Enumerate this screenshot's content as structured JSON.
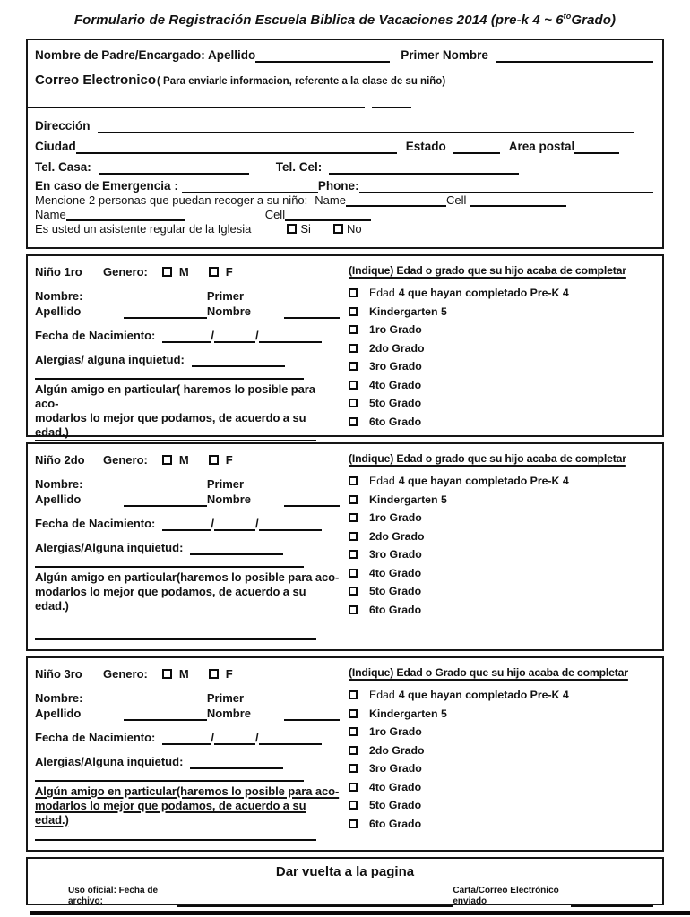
{
  "title": {
    "main": "Formulario de Registración Escuela Biblica de Vacaciones 2014 (pre-k 4 ~ 6",
    "sup": "to",
    "tail": "Grado)"
  },
  "parent": {
    "nombre_label": "Nombre de Padre/Encargado: Apellido",
    "primer_nombre_label": "Primer Nombre",
    "correo_label": "Correo Electronico",
    "correo_paren": "( Para enviarle informacion, referente a la clase de su niño)",
    "direccion_label": "Dirección",
    "ciudad_label": "Ciudad",
    "estado_label": "Estado",
    "area_postal_label": "Area postal",
    "tel_casa_label": "Tel. Casa:",
    "tel_cel_label": "Tel. Cel:",
    "emergencia_label": "En caso de Emergencia  :",
    "phone_label": "Phone:",
    "mencione_text": "Mencione 2 personas que puedan recoger a su niño:",
    "name_label": "Name",
    "cell_label": "Cell",
    "name2_label": "Name",
    "cell2_label": "Cell",
    "asistente_question": "Es usted un asistente regular de la Iglesia",
    "si_label": "Si",
    "no_label": "No"
  },
  "children": [
    {
      "heading": "Niño 1ro",
      "genero_label": "Genero:",
      "male_label": "M",
      "female_label": "F",
      "nombre_label": "Nombre: Apellido",
      "primer_label": "Primer Nombre",
      "fecha_label": "Fecha de Nacimiento:",
      "fecha_sep": "/",
      "alergias_label": "Alergias/ alguna inquietud:",
      "friend_line1": "Algún amigo en particular( haremos lo posible para aco-",
      "friend_line2": "modarlos lo mejor que podamos, de acuerdo a su edad.)",
      "grades_header": "(Indique) Edad o grado que su hijo acaba de completar",
      "grade_items": [
        {
          "prefix": "Edad",
          "label": "4 que hayan completado Pre-K 4"
        },
        {
          "prefix": "",
          "label": "Kindergarten 5"
        },
        {
          "prefix": "",
          "label": "1ro Grado"
        },
        {
          "prefix": "",
          "label": "2do Grado"
        },
        {
          "prefix": "",
          "label": "3ro Grado"
        },
        {
          "prefix": "",
          "label": "4to Grado"
        },
        {
          "prefix": "",
          "label": "5to Grado"
        },
        {
          "prefix": "",
          "label": "6to Grado"
        }
      ]
    },
    {
      "heading": "Niño 2do",
      "genero_label": "Genero:",
      "male_label": "M",
      "female_label": "F",
      "nombre_label": "Nombre: Apellido",
      "primer_label": "Primer Nombre",
      "fecha_label": "Fecha de Nacimiento:",
      "fecha_sep": "/",
      "alergias_label": "Alergias/Alguna inquietud:",
      "friend_line1": "Algún amigo en particular(haremos lo posible para aco-",
      "friend_line2": "modarlos lo mejor que podamos, de acuerdo a su edad.)",
      "grades_header": "(Indique) Edad o grado que su hijo acaba de completar",
      "grade_items": [
        {
          "prefix": "Edad",
          "label": "4 que hayan completado Pre-K 4"
        },
        {
          "prefix": "",
          "label": "Kindergarten 5"
        },
        {
          "prefix": "",
          "label": "1ro Grado"
        },
        {
          "prefix": "",
          "label": "2do Grado"
        },
        {
          "prefix": "",
          "label": "3ro Grado"
        },
        {
          "prefix": "",
          "label": "4to Grado"
        },
        {
          "prefix": "",
          "label": "5to Grado"
        },
        {
          "prefix": "",
          "label": "6to Grado"
        }
      ]
    },
    {
      "heading": "Niño 3ro",
      "genero_label": "Genero:",
      "male_label": "M",
      "female_label": "F",
      "nombre_label": "Nombre: Apellido",
      "primer_label": "Primer Nombre",
      "fecha_label": "Fecha de Nacimiento:",
      "fecha_sep": "/",
      "alergias_label": "Alergias/Alguna inquietud:",
      "friend_line1": "Algún amigo en particular(haremos lo posible para aco-",
      "friend_line2": "modarlos lo mejor que podamos, de acuerdo a su edad.)",
      "grades_header": "(Indique) Edad o Grado que su hijo acaba de completar",
      "grade_items": [
        {
          "prefix": "Edad",
          "label": "4 que hayan completado Pre-K 4"
        },
        {
          "prefix": "",
          "label": "Kindergarten 5"
        },
        {
          "prefix": "",
          "label": "1ro Grado"
        },
        {
          "prefix": "",
          "label": "2do Grado"
        },
        {
          "prefix": "",
          "label": "3ro Grado"
        },
        {
          "prefix": "",
          "label": "4to Grado"
        },
        {
          "prefix": "",
          "label": "5to Grado"
        },
        {
          "prefix": "",
          "label": "6to Grado"
        }
      ]
    }
  ],
  "footer": {
    "turn_label": "Dar vuelta a la pagina",
    "uso_label": "Uso oficial: Fecha  de archivo:",
    "carta_label": "Carta/Correo Electrónico enviado"
  }
}
